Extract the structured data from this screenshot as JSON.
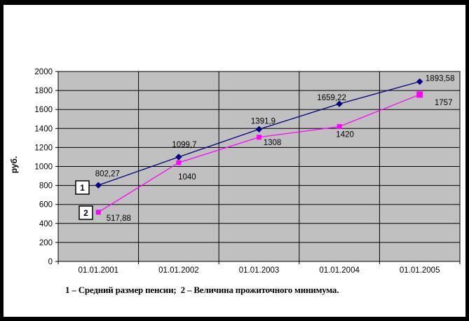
{
  "caption": "1 – Средний размер пенсии;  2 – Величина прожиточного минимума.",
  "chart_data": {
    "type": "line",
    "title": "",
    "xlabel": "",
    "ylabel": "руб.",
    "plot_bg": "#c0c0c0",
    "grid": true,
    "legend_position": "callout-boxes-near-first-points",
    "ylim": [
      0,
      2000
    ],
    "ytick_step": 200,
    "yticks": [
      0,
      200,
      400,
      600,
      800,
      1000,
      1200,
      1400,
      1600,
      1800,
      2000
    ],
    "categories": [
      "01.01.2001",
      "01.01.2002",
      "01.01.2003",
      "01.01.2004",
      "01.01.2005"
    ],
    "series": [
      {
        "name": "1",
        "legend_label": "Средний размер пенсии",
        "color": "#000080",
        "marker": "diamond",
        "values": [
          802.27,
          1099.7,
          1391.9,
          1659.22,
          1893.58
        ],
        "data_labels": [
          "802,27",
          "1099,7",
          "1391,9",
          "1659,22",
          "1893,58"
        ]
      },
      {
        "name": "2",
        "legend_label": "Величина прожиточного минимума",
        "color": "#ff00ff",
        "marker": "square",
        "values": [
          517.88,
          1040,
          1308,
          1420,
          1757
        ],
        "data_labels": [
          "517,88",
          "1040",
          "1308",
          "1420",
          "1757"
        ]
      }
    ]
  }
}
